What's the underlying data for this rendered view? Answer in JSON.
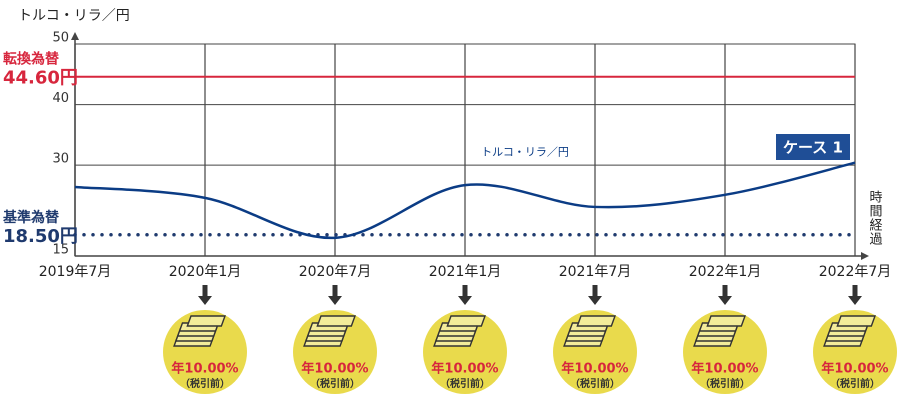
{
  "chart_data": {
    "type": "line",
    "y_axis_label": "トルコ・リラ／円",
    "x_axis_label": "時間経過",
    "categories": [
      "2019年7月",
      "2020年1月",
      "2020年7月",
      "2021年1月",
      "2021年7月",
      "2022年1月",
      "2022年7月"
    ],
    "series": [
      {
        "name": "トルコ・リラ／円",
        "color": "#0b3c85",
        "values": [
          26.4,
          24.6,
          18.0,
          26.7,
          23.1,
          25.1,
          30.4
        ]
      }
    ],
    "ylim": [
      15,
      50
    ],
    "yticks": [
      15,
      30,
      40,
      50
    ],
    "grid": true,
    "reference_lines": [
      {
        "name": "転換為替",
        "value": 44.6,
        "value_label": "44.60円",
        "color": "#d7263d",
        "style": "solid"
      },
      {
        "name": "基準為替",
        "value": 18.5,
        "value_label": "18.50円",
        "color": "#1f3a6e",
        "style": "dotted"
      }
    ],
    "badge": "ケース 1",
    "coupons": [
      {
        "label": "年10.00%",
        "note": "（税引前）"
      },
      {
        "label": "年10.00%",
        "note": "（税引前）"
      },
      {
        "label": "年10.00%",
        "note": "（税引前）"
      },
      {
        "label": "年10.00%",
        "note": "（税引前）"
      },
      {
        "label": "年10.00%",
        "note": "（税引前）"
      },
      {
        "label": "年10.00%",
        "note": "（税引前）"
      }
    ]
  }
}
